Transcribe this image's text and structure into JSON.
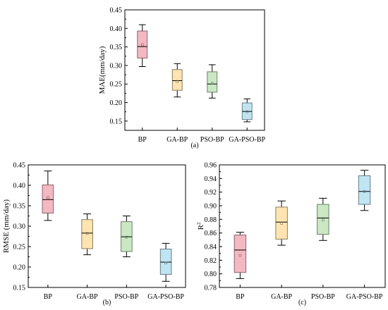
{
  "chart_data": [
    {
      "type": "box",
      "panel_label": "(a)",
      "ylabel": "MAE(mm/day)",
      "ylim": [
        0.125,
        0.45
      ],
      "yticks": [
        "0.15",
        "0.20",
        "0.25",
        "0.30",
        "0.35",
        "0.40",
        "0.45"
      ],
      "categories": [
        "BP",
        "GA-BP",
        "PSO-BP",
        "GA-PSO-BP"
      ],
      "colors": [
        "#f4b8c2",
        "#fde4b0",
        "#c9e8c3",
        "#bfe4f2"
      ],
      "boxes": [
        {
          "whisker_low": 0.297,
          "q1": 0.32,
          "median": 0.351,
          "mean": 0.356,
          "q3": 0.393,
          "whisker_high": 0.41
        },
        {
          "whisker_low": 0.215,
          "q1": 0.233,
          "median": 0.259,
          "mean": 0.257,
          "q3": 0.289,
          "whisker_high": 0.305
        },
        {
          "whisker_low": 0.212,
          "q1": 0.228,
          "median": 0.25,
          "mean": 0.252,
          "q3": 0.283,
          "whisker_high": 0.302
        },
        {
          "whisker_low": 0.148,
          "q1": 0.154,
          "median": 0.176,
          "mean": 0.175,
          "q3": 0.199,
          "whisker_high": 0.21
        }
      ]
    },
    {
      "type": "box",
      "panel_label": "(b)",
      "ylabel": "RMSE (mm/day)",
      "ylim": [
        0.15,
        0.45
      ],
      "yticks": [
        "0.15",
        "0.20",
        "0.25",
        "0.30",
        "0.35",
        "0.40",
        "0.45"
      ],
      "categories": [
        "BP",
        "GA-BP",
        "PSO-BP",
        "GA-PSO-BP"
      ],
      "colors": [
        "#f4b8c2",
        "#fde4b0",
        "#c9e8c3",
        "#bfe4f2"
      ],
      "boxes": [
        {
          "whisker_low": 0.314,
          "q1": 0.332,
          "median": 0.365,
          "mean": 0.37,
          "q3": 0.401,
          "whisker_high": 0.435
        },
        {
          "whisker_low": 0.23,
          "q1": 0.245,
          "median": 0.283,
          "mean": 0.282,
          "q3": 0.316,
          "whisker_high": 0.33
        },
        {
          "whisker_low": 0.225,
          "q1": 0.238,
          "median": 0.274,
          "mean": 0.273,
          "q3": 0.311,
          "whisker_high": 0.325
        },
        {
          "whisker_low": 0.165,
          "q1": 0.182,
          "median": 0.212,
          "mean": 0.21,
          "q3": 0.244,
          "whisker_high": 0.258
        }
      ]
    },
    {
      "type": "box",
      "panel_label": "(c)",
      "ylabel": "R",
      "ylabel_sup": "2",
      "ylim": [
        0.78,
        0.96
      ],
      "yticks": [
        "0.78",
        "0.80",
        "0.82",
        "0.84",
        "0.86",
        "0.88",
        "0.90",
        "0.92",
        "0.94",
        "0.96"
      ],
      "categories": [
        "BP",
        "GA-BP",
        "PSO-BP",
        "GA-PSO-BP"
      ],
      "colors": [
        "#f4b8c2",
        "#fde4b0",
        "#c9e8c3",
        "#bfe4f2"
      ],
      "boxes": [
        {
          "whisker_low": 0.793,
          "q1": 0.802,
          "median": 0.835,
          "mean": 0.827,
          "q3": 0.857,
          "whisker_high": 0.861
        },
        {
          "whisker_low": 0.842,
          "q1": 0.851,
          "median": 0.876,
          "mean": 0.874,
          "q3": 0.898,
          "whisker_high": 0.907
        },
        {
          "whisker_low": 0.849,
          "q1": 0.858,
          "median": 0.882,
          "mean": 0.879,
          "q3": 0.902,
          "whisker_high": 0.911
        },
        {
          "whisker_low": 0.893,
          "q1": 0.902,
          "median": 0.921,
          "mean": 0.921,
          "q3": 0.944,
          "whisker_high": 0.952
        }
      ]
    }
  ]
}
